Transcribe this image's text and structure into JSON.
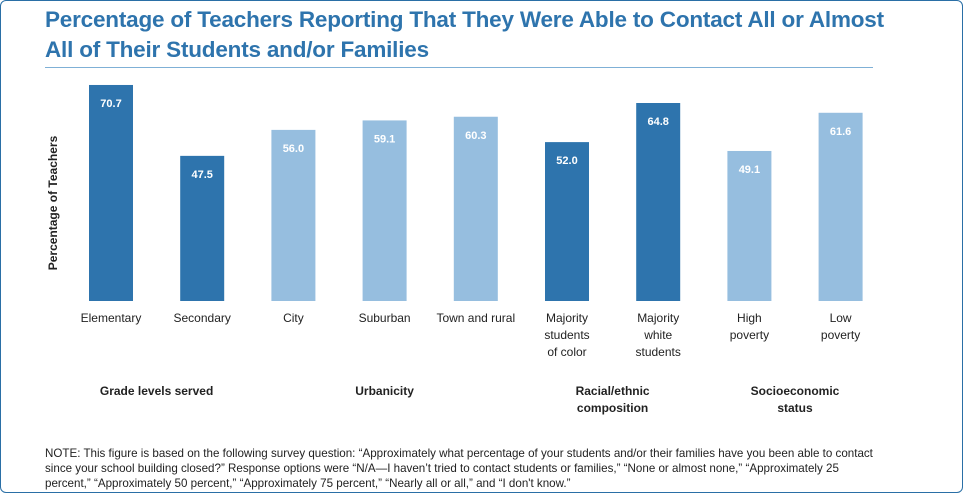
{
  "title": "Percentage of Teachers Reporting That They Were Able to Contact All or Almost All of Their Students and/or Families",
  "note": "NOTE: This figure is based on the following survey question: “Approximately what percentage of your students and/or their families have you been able to contact since your school building closed?” Response options were “N/A—I haven’t tried to contact students or families,” “None or almost none,” “Approximately 25 percent,” “Approximately 50 percent,” “Approximately 75 percent,” “Nearly all or all,” and “I don't know.”",
  "chart_data": {
    "type": "bar",
    "title": "Percentage of Teachers Reporting That They Were Able to Contact All or Almost All of Their Students and/or Families",
    "ylabel": "Percentage of Teachers",
    "xlabel": "",
    "ylim": [
      0,
      72
    ],
    "grid": false,
    "categories": [
      [
        "Elementary"
      ],
      [
        "Secondary"
      ],
      [
        "City"
      ],
      [
        "Suburban"
      ],
      [
        "Town and rural"
      ],
      [
        "Majority",
        "students",
        "of color"
      ],
      [
        "Majority",
        "white",
        "students"
      ],
      [
        "High",
        "poverty"
      ],
      [
        "Low",
        "poverty"
      ]
    ],
    "values": [
      70.7,
      47.5,
      56.0,
      59.1,
      60.3,
      52.0,
      64.8,
      49.1,
      61.6
    ],
    "value_labels": [
      "70.7",
      "47.5",
      "56.0",
      "59.1",
      "60.3",
      "52.0",
      "64.8",
      "49.1",
      "61.6"
    ],
    "groups": [
      {
        "label": [
          "Grade levels served"
        ],
        "members": [
          0,
          1
        ]
      },
      {
        "label": [
          "Urbanicity"
        ],
        "members": [
          2,
          3,
          4
        ]
      },
      {
        "label": [
          "Racial/ethnic",
          "composition"
        ],
        "members": [
          5,
          6
        ]
      },
      {
        "label": [
          "Socioeconomic",
          "status"
        ],
        "members": [
          7,
          8
        ]
      }
    ],
    "colors": {
      "dark": "#2e74ad",
      "light": "#96bedf"
    },
    "bar_colors": [
      "dark",
      "dark",
      "light",
      "light",
      "light",
      "dark",
      "dark",
      "light",
      "light"
    ]
  }
}
